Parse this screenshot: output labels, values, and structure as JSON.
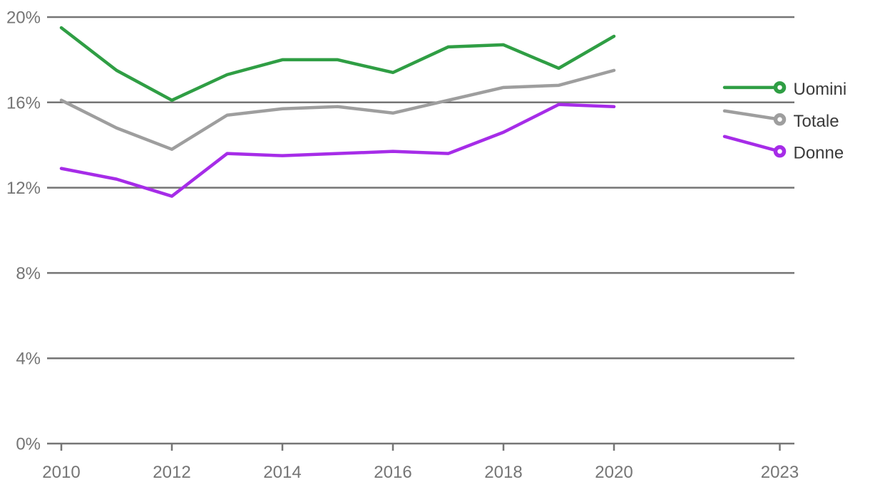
{
  "chart_data": {
    "type": "line",
    "title": "",
    "xlabel": "",
    "ylabel": "",
    "x_years": [
      2010,
      2011,
      2012,
      2013,
      2014,
      2015,
      2016,
      2017,
      2018,
      2019,
      2020,
      2021,
      2022,
      2023
    ],
    "series": [
      {
        "name": "Uomini",
        "color": "#2f9e44",
        "values": [
          19.5,
          17.5,
          16.1,
          17.3,
          18.0,
          18.0,
          17.4,
          18.6,
          18.7,
          17.6,
          19.1,
          null,
          16.7,
          16.7
        ]
      },
      {
        "name": "Totale",
        "color": "#9e9e9e",
        "values": [
          16.1,
          14.8,
          13.8,
          15.4,
          15.7,
          15.8,
          15.5,
          16.1,
          16.7,
          16.8,
          17.5,
          null,
          15.6,
          15.2
        ]
      },
      {
        "name": "Donne",
        "color": "#a62ce8",
        "values": [
          12.9,
          12.4,
          11.6,
          13.6,
          13.5,
          13.6,
          13.7,
          13.6,
          14.6,
          15.9,
          15.8,
          null,
          14.4,
          13.7
        ]
      }
    ],
    "missing_years": [
      2021
    ],
    "y_ticks": [
      {
        "value": 0,
        "label": "0%"
      },
      {
        "value": 4,
        "label": "4%"
      },
      {
        "value": 8,
        "label": "8%"
      },
      {
        "value": 12,
        "label": "12%"
      },
      {
        "value": 16,
        "label": "16%"
      },
      {
        "value": 20,
        "label": "20%"
      }
    ],
    "x_ticks": [
      {
        "year": 2010,
        "label": "2010"
      },
      {
        "year": 2012,
        "label": "2012"
      },
      {
        "year": 2014,
        "label": "2014"
      },
      {
        "year": 2016,
        "label": "2016"
      },
      {
        "year": 2018,
        "label": "2018"
      },
      {
        "year": 2020,
        "label": "2020"
      },
      {
        "year": 2023,
        "label": "2023"
      }
    ],
    "ylim": [
      0,
      20
    ],
    "grid": true,
    "legend_position": "right-of-line-end",
    "end_marker": "open-circle"
  },
  "style": {
    "background": "#ffffff",
    "grid_color": "#757575",
    "axis_label_color": "#757575",
    "legend_label_color": "#3a3a3a"
  }
}
